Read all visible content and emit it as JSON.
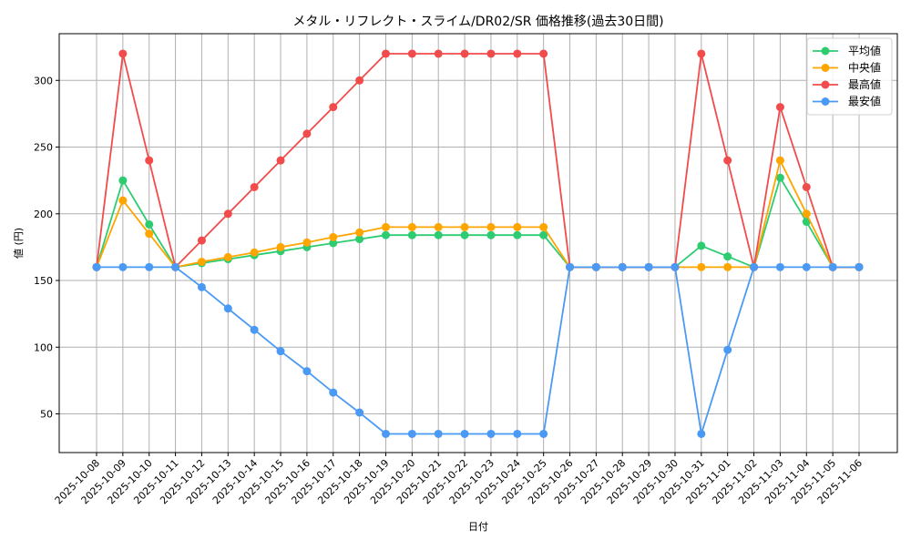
{
  "chart_data": {
    "type": "line",
    "title": "メタル・リフレクト・スライム/DR02/SR 価格推移(過去30日間)",
    "xlabel": "日付",
    "ylabel": "値 (円)",
    "ylim": [
      21,
      335
    ],
    "yticks": [
      50,
      100,
      150,
      200,
      250,
      300
    ],
    "grid": true,
    "legend_position": "upper right",
    "x": [
      "2025-10-08",
      "2025-10-09",
      "2025-10-10",
      "2025-10-11",
      "2025-10-12",
      "2025-10-13",
      "2025-10-14",
      "2025-10-15",
      "2025-10-16",
      "2025-10-17",
      "2025-10-18",
      "2025-10-19",
      "2025-10-20",
      "2025-10-21",
      "2025-10-22",
      "2025-10-23",
      "2025-10-24",
      "2025-10-25",
      "2025-10-26",
      "2025-10-27",
      "2025-10-28",
      "2025-10-29",
      "2025-10-30",
      "2025-10-31",
      "2025-11-01",
      "2025-11-02",
      "2025-11-03",
      "2025-11-04",
      "2025-11-05",
      "2025-11-06"
    ],
    "series": [
      {
        "name": "平均値",
        "color": "#2ecc71",
        "values": [
          160,
          225,
          192,
          160,
          163,
          166,
          169,
          172,
          175,
          178,
          181,
          184,
          184,
          184,
          184,
          184,
          184,
          184,
          160,
          160,
          160,
          160,
          160,
          176,
          168,
          160,
          227,
          194,
          160,
          160
        ]
      },
      {
        "name": "中央値",
        "color": "#ffa500",
        "values": [
          160,
          210,
          185,
          160,
          164,
          167.5,
          171,
          175,
          178.5,
          182.5,
          186,
          190,
          190,
          190,
          190,
          190,
          190,
          190,
          160,
          160,
          160,
          160,
          160,
          160,
          160,
          160,
          240,
          200,
          160,
          160
        ]
      },
      {
        "name": "最高値",
        "color": "#f24b4b",
        "values": [
          160,
          320,
          240,
          160,
          180,
          200,
          220,
          240,
          260,
          280,
          300,
          320,
          320,
          320,
          320,
          320,
          320,
          320,
          160,
          160,
          160,
          160,
          160,
          320,
          240,
          160,
          280,
          220,
          160,
          160
        ]
      },
      {
        "name": "最安値",
        "color": "#4a9af5",
        "values": [
          160,
          160,
          160,
          160,
          145,
          129,
          113,
          97,
          82,
          66,
          51,
          35,
          35,
          35,
          35,
          35,
          35,
          35,
          160,
          160,
          160,
          160,
          160,
          35,
          98,
          160,
          160,
          160,
          160,
          160
        ]
      }
    ]
  }
}
